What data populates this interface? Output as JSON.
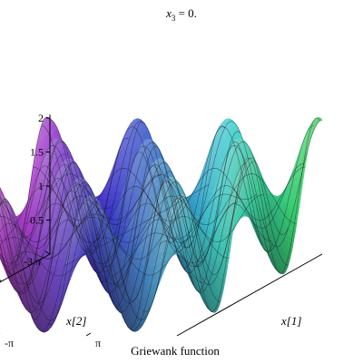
{
  "chart_data": {
    "type": "surface",
    "function": "Griewank",
    "title": "x3 = 0.",
    "title_parts": {
      "base": "x",
      "sub": "3",
      "rest": " = 0."
    },
    "caption": "Griewank function",
    "x_axis": {
      "label": "x[1]",
      "range": [
        -9.42478,
        9.42478
      ],
      "ticks": [
        "-3 π",
        "-π",
        "π"
      ]
    },
    "y_axis": {
      "label": "x[2]",
      "range": [
        -9.42478,
        9.42478
      ],
      "ticks": [
        "-3 π",
        "-π",
        "π"
      ]
    },
    "z_axis": {
      "range": [
        0,
        2.05
      ],
      "ticks": [
        "0.5",
        "1",
        "1.5",
        "2"
      ]
    },
    "grid_lines": 18
  }
}
